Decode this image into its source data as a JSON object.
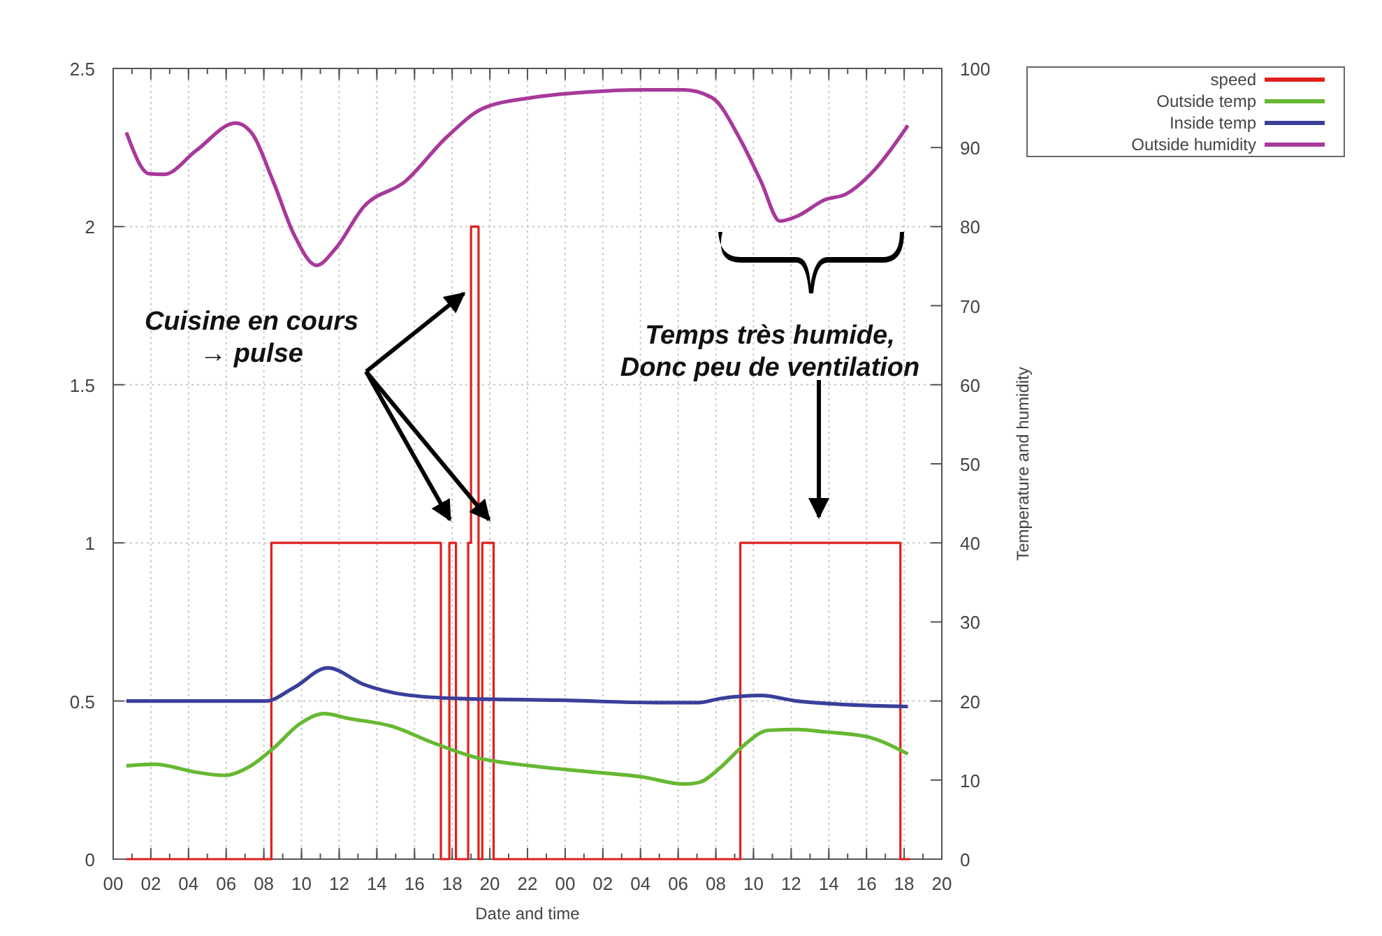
{
  "chart_data": {
    "type": "line",
    "xlabel": "Date and time",
    "y2label": "Temperature and humidity",
    "xlim": [
      0,
      44
    ],
    "xticks": [
      {
        "value": 0,
        "label": "00"
      },
      {
        "value": 2,
        "label": "02"
      },
      {
        "value": 4,
        "label": "04"
      },
      {
        "value": 6,
        "label": "06"
      },
      {
        "value": 8,
        "label": "08"
      },
      {
        "value": 10,
        "label": "10"
      },
      {
        "value": 12,
        "label": "12"
      },
      {
        "value": 14,
        "label": "14"
      },
      {
        "value": 16,
        "label": "16"
      },
      {
        "value": 18,
        "label": "18"
      },
      {
        "value": 20,
        "label": "20"
      },
      {
        "value": 22,
        "label": "22"
      },
      {
        "value": 24,
        "label": "00"
      },
      {
        "value": 26,
        "label": "02"
      },
      {
        "value": 28,
        "label": "04"
      },
      {
        "value": 30,
        "label": "06"
      },
      {
        "value": 32,
        "label": "08"
      },
      {
        "value": 34,
        "label": "10"
      },
      {
        "value": 36,
        "label": "12"
      },
      {
        "value": 38,
        "label": "14"
      },
      {
        "value": 40,
        "label": "16"
      },
      {
        "value": 42,
        "label": "18"
      },
      {
        "value": 44,
        "label": "20"
      }
    ],
    "ylim": [
      0,
      2.5
    ],
    "yticks": [
      0,
      0.5,
      1,
      1.5,
      2,
      2.5
    ],
    "y2lim": [
      0,
      100
    ],
    "y2ticks": [
      0,
      10,
      20,
      30,
      40,
      50,
      60,
      70,
      80,
      90,
      100
    ],
    "grid": true,
    "legend": "top right",
    "marker": "none",
    "line_style": "solid",
    "annotations": [
      "Cuisine en cours\n→ pulse",
      "Temps très humide,\nDonc peu de ventilation"
    ],
    "series": [
      {
        "name": "speed",
        "type": "step",
        "color": "#e0201c",
        "x": [
          0.7,
          8.4,
          17.4,
          17.85,
          18.2,
          18.85,
          19.0,
          19.4,
          19.6,
          20.2,
          33.3,
          41.8,
          42.3
        ],
        "values": [
          0,
          1,
          0,
          1,
          0,
          1,
          2,
          0,
          1,
          0,
          1,
          0,
          0
        ]
      },
      {
        "name": "Outside temp",
        "axis": "y2",
        "color": "#66b832",
        "x": [
          0.7,
          2.2,
          4.4,
          5.9,
          7.3,
          8.5,
          9.9,
          11.2,
          12.5,
          14.8,
          17,
          19.2,
          22.2,
          25.1,
          28.1,
          30.3,
          31.1,
          32.2,
          33.3,
          34.8,
          36.3,
          37.8,
          40,
          42.2
        ],
        "values": [
          11.8,
          12,
          11,
          10.6,
          11.8,
          14,
          17.1,
          18.4,
          17.8,
          16.8,
          14.7,
          12.9,
          11.8,
          11.1,
          10.4,
          9.5,
          9.7,
          11.5,
          14,
          16.3,
          16.4,
          16.1,
          15.5,
          13.3
        ]
      },
      {
        "name": "Inside temp",
        "axis": "y2",
        "color": "#3a3f9a",
        "x": [
          0.7,
          8.1,
          9.6,
          11.4,
          13.3,
          15.5,
          18.5,
          23.7,
          28.9,
          31.1,
          32.2,
          34.4,
          36.3,
          38.5,
          42.2
        ],
        "values": [
          20,
          20,
          21.7,
          24.2,
          22.1,
          20.8,
          20.3,
          20.1,
          19.8,
          19.8,
          20.3,
          20.7,
          20,
          19.6,
          19.3
        ]
      },
      {
        "name": "Outside humidity",
        "axis": "y2",
        "color": "#a8399a",
        "x": [
          0.7,
          1.9,
          2.7,
          4.4,
          6.5,
          7.3,
          8.5,
          9.6,
          10.8,
          11.8,
          13.3,
          15.5,
          17.7,
          19.6,
          22.2,
          25.1,
          28.1,
          30.3,
          31.8,
          33.3,
          34.4,
          35.4,
          36.3,
          37.8,
          38.9,
          40.4,
          42.2
        ],
        "values": [
          91.9,
          86.7,
          86.6,
          89.6,
          93.1,
          92,
          85.7,
          79,
          75.1,
          77.2,
          82.5,
          85.7,
          91.3,
          94.9,
          96.3,
          97,
          97.3,
          97.3,
          96.3,
          91,
          85.7,
          80.7,
          81.3,
          83.4,
          84.1,
          87.1,
          92.8
        ]
      }
    ]
  }
}
